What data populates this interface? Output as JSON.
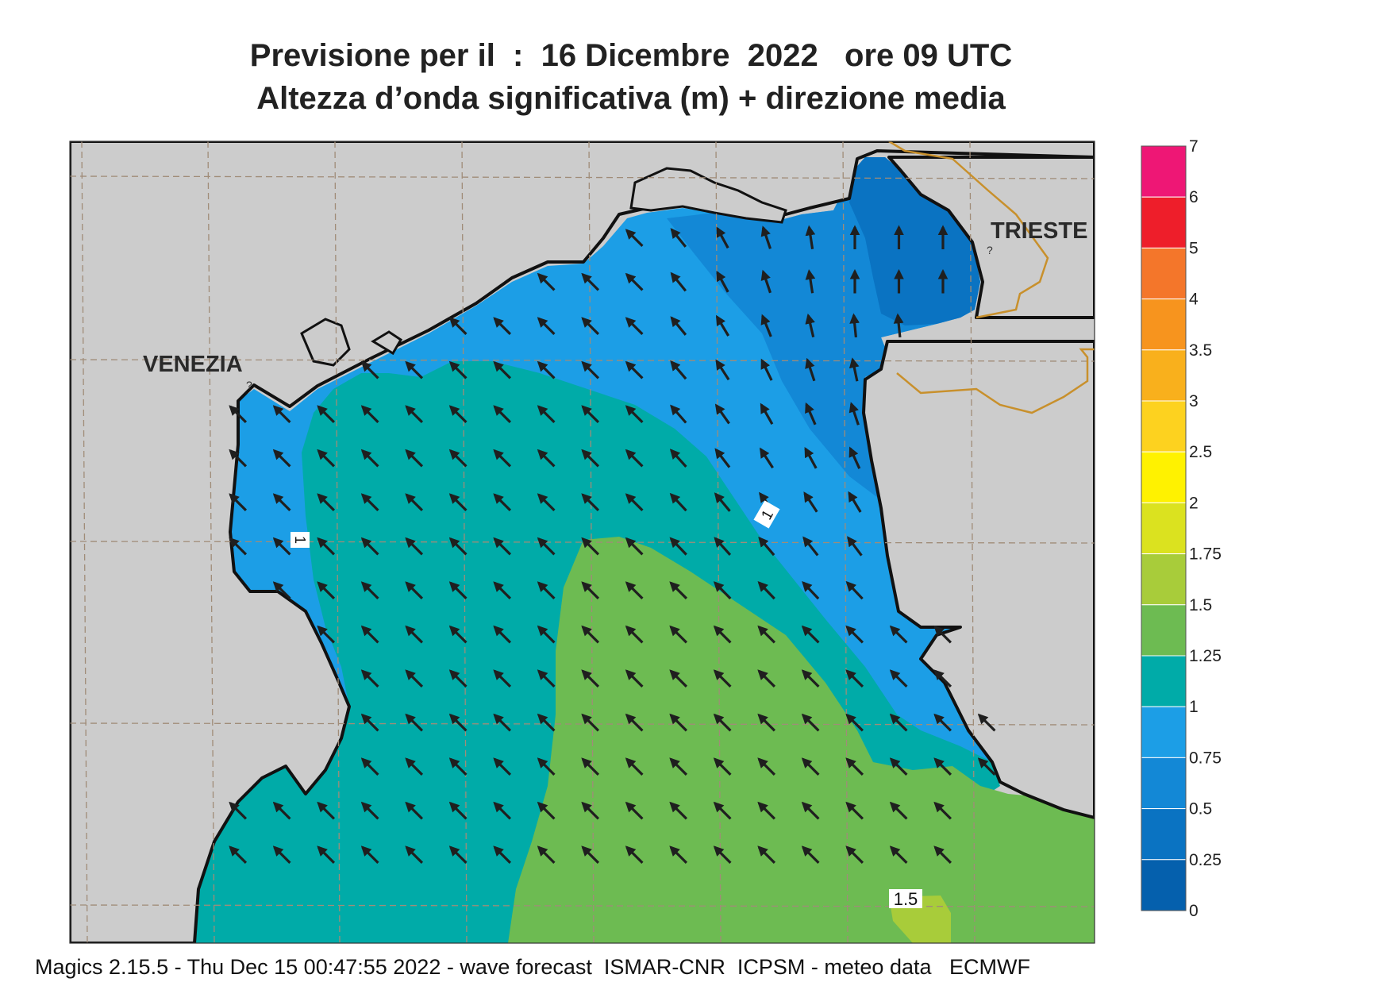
{
  "title_line1": "Previsione per il  :  16 Dicembre  2022   ore 09 UTC",
  "title_line2": "Altezza d’onda significativa (m) + direzione media",
  "footer": "Magics 2.15.5 - Thu Dec 15 00:47:55 2022 - wave forecast  ISMAR-CNR  ICPSM - meteo data   ECMWF",
  "cities": [
    {
      "name": "VENEZIA"
    },
    {
      "name": "TRIESTE"
    }
  ],
  "contour_labels": [
    "1",
    "1",
    "1.5"
  ],
  "colors": {
    "land": "#cccccc",
    "coast": "#111111",
    "border": "#c8902c",
    "grid": "#a08c78",
    "arrow": "#1f1f1f"
  },
  "wave_height_bands_m": [
    {
      "band": "0.25-0.5",
      "color": "#0a73c2"
    },
    {
      "band": "0.5-0.75",
      "color": "#1388d6"
    },
    {
      "band": "0.75-1",
      "color": "#1c9ee6"
    },
    {
      "band": "1-1.25",
      "color": "#00aba8"
    },
    {
      "band": "1.25-1.5",
      "color": "#6dbb52"
    },
    {
      "band": "1.5-1.75",
      "color": "#a8cc3a"
    }
  ],
  "arrow_direction": "toward north-west (mean wave direction)",
  "legend": [
    {
      "label": "7",
      "color": "#ee1775"
    },
    {
      "label": "6",
      "color": "#ee1e2a"
    },
    {
      "label": "5",
      "color": "#f4762a"
    },
    {
      "label": "4",
      "color": "#f7941e"
    },
    {
      "label": "3.5",
      "color": "#f9b01c"
    },
    {
      "label": "3",
      "color": "#fdd21f"
    },
    {
      "label": "2.5",
      "color": "#fff200"
    },
    {
      "label": "2",
      "color": "#dbe21f"
    },
    {
      "label": "1.75",
      "color": "#a8cc3a"
    },
    {
      "label": "1.5",
      "color": "#6dbb52"
    },
    {
      "label": "1.25",
      "color": "#00aba8"
    },
    {
      "label": "1",
      "color": "#1c9ee6"
    },
    {
      "label": "0.75",
      "color": "#1388d6"
    },
    {
      "label": "0.5",
      "color": "#0a73c2"
    },
    {
      "label": "0.25",
      "color": "#0560ad"
    },
    {
      "label": "0",
      "color": ""
    }
  ]
}
